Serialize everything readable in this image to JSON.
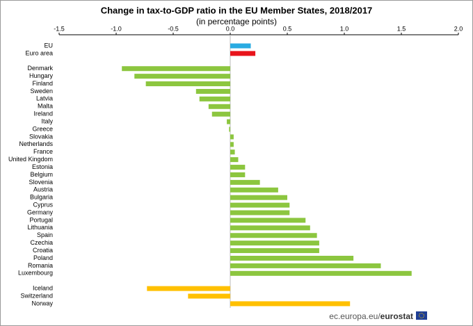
{
  "chart_data": {
    "type": "hbar",
    "title": "Change in tax-to-GDP ratio in the EU Member States, 2018/2017",
    "subtitle": "(in percentage points)",
    "categories": [
      "EU",
      "Euro area",
      null,
      "Denmark",
      "Hungary",
      "Finland",
      "Sweden",
      "Latvia",
      "Malta",
      "Ireland",
      "Italy",
      "Greece",
      "Slovakia",
      "Netherlands",
      "France",
      "United Kingdom",
      "Estonia",
      "Belgium",
      "Slovenia",
      "Austria",
      "Bulgaria",
      "Cyprus",
      "Germany",
      "Portugal",
      "Lithuania",
      "Spain",
      "Czechia",
      "Croatia",
      "Poland",
      "Romania",
      "Luxembourg",
      null,
      "Iceland",
      "Switzerland",
      "Norway"
    ],
    "values": [
      0.18,
      0.22,
      null,
      -0.95,
      -0.84,
      -0.74,
      -0.3,
      -0.27,
      -0.19,
      -0.16,
      -0.03,
      -0.01,
      0.03,
      0.03,
      0.04,
      0.07,
      0.13,
      0.13,
      0.26,
      0.42,
      0.5,
      0.52,
      0.52,
      0.66,
      0.7,
      0.76,
      0.78,
      0.78,
      1.08,
      1.32,
      1.59,
      null,
      -0.73,
      -0.37,
      1.05
    ],
    "colors": [
      "#29abe2",
      "#e8141b",
      null,
      "#8cc63f",
      "#8cc63f",
      "#8cc63f",
      "#8cc63f",
      "#8cc63f",
      "#8cc63f",
      "#8cc63f",
      "#8cc63f",
      "#8cc63f",
      "#8cc63f",
      "#8cc63f",
      "#8cc63f",
      "#8cc63f",
      "#8cc63f",
      "#8cc63f",
      "#8cc63f",
      "#8cc63f",
      "#8cc63f",
      "#8cc63f",
      "#8cc63f",
      "#8cc63f",
      "#8cc63f",
      "#8cc63f",
      "#8cc63f",
      "#8cc63f",
      "#8cc63f",
      "#8cc63f",
      "#8cc63f",
      null,
      "#ffc000",
      "#ffc000",
      "#ffc000"
    ],
    "xlim": [
      -1.5,
      2.0
    ],
    "xticks": [
      -1.5,
      {
        "value": -1.0,
        "label": "-1.0"
      },
      -0.5,
      {
        "value": 0.0,
        "label": "0.0"
      },
      0.5,
      {
        "value": 1.0,
        "label": "1.0"
      },
      1.5,
      {
        "value": 2.0,
        "label": "2.0"
      }
    ],
    "grid": false
  },
  "footer": {
    "prefix": "ec.europa.eu/",
    "brand": "eurostat"
  }
}
